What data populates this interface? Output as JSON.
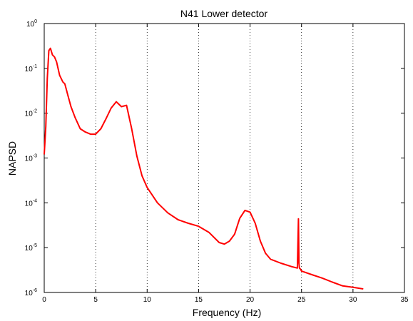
{
  "chart_data": {
    "type": "line",
    "title": "N41 Lower detector",
    "xlabel": "Frequency (Hz)",
    "ylabel": "NAPSD",
    "xlim": [
      0,
      35
    ],
    "ylim": [
      1e-06,
      1
    ],
    "yscale": "log",
    "x_ticks": [
      "0",
      "5",
      "10",
      "15",
      "20",
      "25",
      "30",
      "35"
    ],
    "y_ticks": [
      {
        "base": "10",
        "exp": "0"
      },
      {
        "base": "10",
        "exp": "-1"
      },
      {
        "base": "10",
        "exp": "-2"
      },
      {
        "base": "10",
        "exp": "-3"
      },
      {
        "base": "10",
        "exp": "-4"
      },
      {
        "base": "10",
        "exp": "-5"
      },
      {
        "base": "10",
        "exp": "-6"
      }
    ],
    "grid": "vertical-dotted",
    "series": [
      {
        "color": "#ff0000",
        "x": [
          0.0,
          0.15,
          0.3,
          0.45,
          0.6,
          0.8,
          1.0,
          1.2,
          1.5,
          1.8,
          2.0,
          2.3,
          2.6,
          3.0,
          3.5,
          4.0,
          4.5,
          5.0,
          5.5,
          6.0,
          6.5,
          7.0,
          7.5,
          8.0,
          8.5,
          9.0,
          9.5,
          10.0,
          11.0,
          12.0,
          13.0,
          14.0,
          15.0,
          16.0,
          17.0,
          17.5,
          18.0,
          18.5,
          19.0,
          19.5,
          20.0,
          20.5,
          21.0,
          21.5,
          22.0,
          23.0,
          24.0,
          24.6,
          24.7,
          24.75,
          24.8,
          24.9,
          25.0,
          26.0,
          27.0,
          28.0,
          29.0,
          30.0,
          31.0
        ],
        "y": [
          0.0012,
          0.005,
          0.06,
          0.25,
          0.28,
          0.2,
          0.18,
          0.14,
          0.07,
          0.05,
          0.045,
          0.025,
          0.014,
          0.008,
          0.0045,
          0.0038,
          0.0034,
          0.0034,
          0.0045,
          0.0075,
          0.013,
          0.018,
          0.014,
          0.015,
          0.0045,
          0.0011,
          0.0004,
          0.00022,
          0.0001,
          6e-05,
          4.2e-05,
          3.5e-05,
          3e-05,
          2.2e-05,
          1.3e-05,
          1.2e-05,
          1.4e-05,
          2e-05,
          4.5e-05,
          6.8e-05,
          6.2e-05,
          3.5e-05,
          1.4e-05,
          7.5e-06,
          5.5e-06,
          4.5e-06,
          3.8e-06,
          3.5e-06,
          4.4e-05,
          4.5e-06,
          3.5e-06,
          3.3e-06,
          3e-06,
          2.5e-06,
          2.1e-06,
          1.7e-06,
          1.4e-06,
          1.3e-06,
          1.2e-06
        ]
      }
    ]
  }
}
